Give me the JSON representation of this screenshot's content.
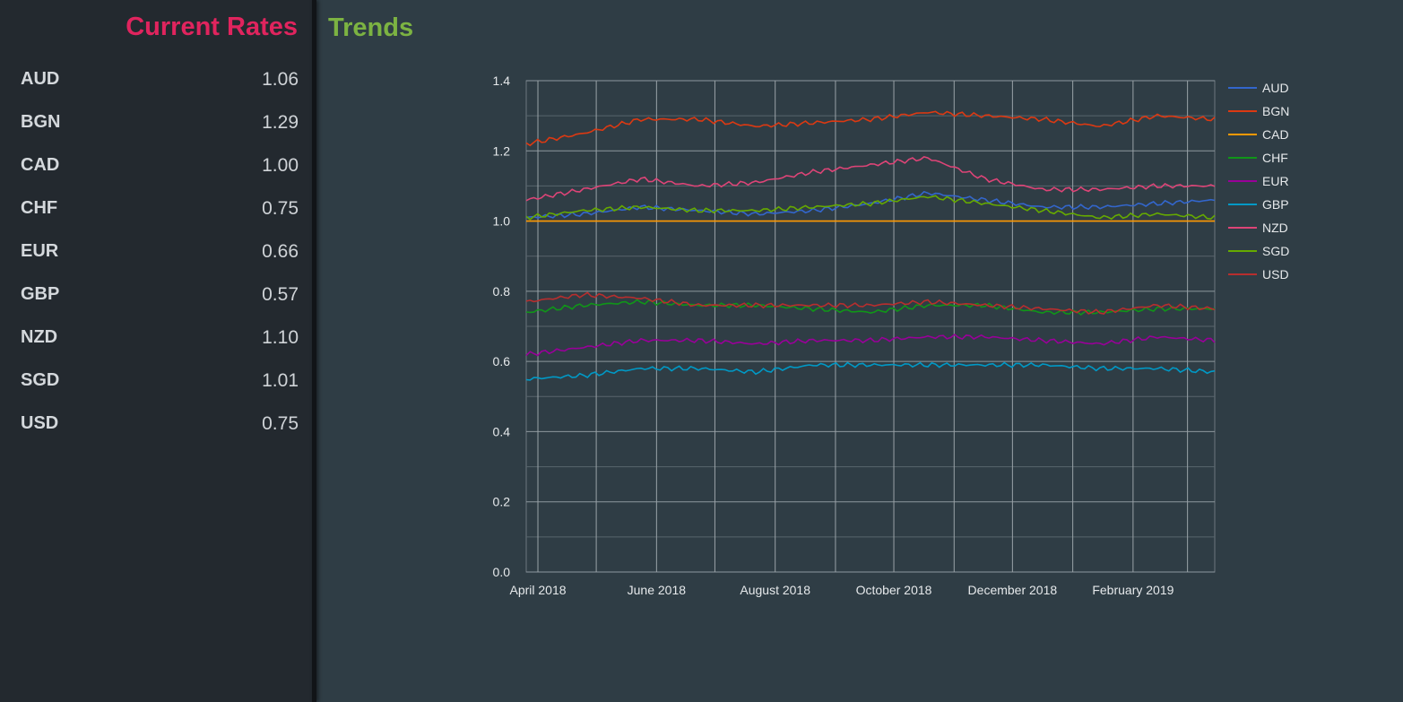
{
  "sidebar": {
    "title": "Current Rates",
    "rates": [
      {
        "code": "AUD",
        "value": "1.06"
      },
      {
        "code": "BGN",
        "value": "1.29"
      },
      {
        "code": "CAD",
        "value": "1.00"
      },
      {
        "code": "CHF",
        "value": "0.75"
      },
      {
        "code": "EUR",
        "value": "0.66"
      },
      {
        "code": "GBP",
        "value": "0.57"
      },
      {
        "code": "NZD",
        "value": "1.10"
      },
      {
        "code": "SGD",
        "value": "1.01"
      },
      {
        "code": "USD",
        "value": "0.75"
      }
    ]
  },
  "main": {
    "title": "Trends"
  },
  "chart_data": {
    "type": "line",
    "ylim": [
      0,
      1.4
    ],
    "y_ticks": [
      "0.0",
      "0.2",
      "0.4",
      "0.6",
      "0.8",
      "1.0",
      "1.2",
      "1.4"
    ],
    "x_tick_labels": [
      "April 2018",
      "June 2018",
      "August 2018",
      "October 2018",
      "December 2018",
      "February 2019"
    ],
    "x": [
      "2018-03-26",
      "2018-04-26",
      "2018-05-26",
      "2018-06-26",
      "2018-07-26",
      "2018-08-26",
      "2018-09-26",
      "2018-10-26",
      "2018-11-26",
      "2018-12-26",
      "2019-01-26",
      "2019-02-26",
      "2019-03-15"
    ],
    "grid": true,
    "legend_position": "right",
    "series": [
      {
        "name": "AUD",
        "color": "#3366cc",
        "values": [
          1.01,
          1.02,
          1.04,
          1.03,
          1.02,
          1.03,
          1.05,
          1.08,
          1.06,
          1.04,
          1.04,
          1.05,
          1.06
        ]
      },
      {
        "name": "BGN",
        "color": "#dc3912",
        "values": [
          1.22,
          1.25,
          1.29,
          1.29,
          1.27,
          1.28,
          1.29,
          1.31,
          1.3,
          1.29,
          1.27,
          1.3,
          1.29
        ]
      },
      {
        "name": "CAD",
        "color": "#ff9900",
        "values": [
          1.0,
          1.0,
          1.0,
          1.0,
          1.0,
          1.0,
          1.0,
          1.0,
          1.0,
          1.0,
          1.0,
          1.0,
          1.0
        ]
      },
      {
        "name": "CHF",
        "color": "#109618",
        "values": [
          0.74,
          0.76,
          0.77,
          0.76,
          0.76,
          0.75,
          0.74,
          0.76,
          0.76,
          0.74,
          0.74,
          0.75,
          0.75
        ]
      },
      {
        "name": "EUR",
        "color": "#990099",
        "values": [
          0.62,
          0.64,
          0.66,
          0.66,
          0.65,
          0.66,
          0.66,
          0.67,
          0.67,
          0.66,
          0.65,
          0.67,
          0.66
        ]
      },
      {
        "name": "GBP",
        "color": "#0099c6",
        "values": [
          0.55,
          0.56,
          0.58,
          0.58,
          0.57,
          0.59,
          0.59,
          0.59,
          0.59,
          0.59,
          0.58,
          0.58,
          0.57
        ]
      },
      {
        "name": "NZD",
        "color": "#dd4477",
        "values": [
          1.06,
          1.09,
          1.12,
          1.1,
          1.11,
          1.14,
          1.16,
          1.18,
          1.12,
          1.09,
          1.09,
          1.1,
          1.1
        ]
      },
      {
        "name": "SGD",
        "color": "#66aa00",
        "values": [
          1.01,
          1.03,
          1.04,
          1.03,
          1.03,
          1.04,
          1.05,
          1.07,
          1.05,
          1.03,
          1.01,
          1.02,
          1.01
        ]
      },
      {
        "name": "USD",
        "color": "#b82e2e",
        "values": [
          0.77,
          0.79,
          0.78,
          0.76,
          0.76,
          0.76,
          0.76,
          0.77,
          0.76,
          0.75,
          0.74,
          0.76,
          0.75
        ]
      }
    ]
  }
}
